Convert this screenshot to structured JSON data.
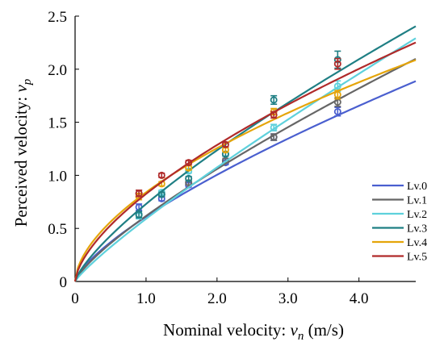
{
  "chart_data": {
    "type": "line",
    "title": "",
    "xlabel": "Nominal velocity: v_n (m/s)",
    "ylabel": "Perceived velocity: v_p",
    "xlabel_parts": {
      "prefix": "Nominal velocity: ",
      "var": "v",
      "sub": "n",
      "suffix": " (m/s)"
    },
    "ylabel_parts": {
      "prefix": "Perceived velocity: ",
      "var": "v",
      "sub": "p"
    },
    "xlim": [
      0,
      4.8
    ],
    "ylim": [
      0,
      2.5
    ],
    "xticks": [
      "0",
      "1.0",
      "2.0",
      "3.0",
      "4.0"
    ],
    "xtick_values": [
      0,
      1.0,
      2.0,
      3.0,
      4.0
    ],
    "yticks": [
      "0",
      "0.5",
      "1.0",
      "1.5",
      "2.0",
      "2.5"
    ],
    "ytick_values": [
      0,
      0.5,
      1.0,
      1.5,
      2.0,
      2.5
    ],
    "grid": false,
    "legend_position": "right",
    "x_measured": [
      0.9,
      1.22,
      1.6,
      2.12,
      2.8,
      3.7
    ],
    "series": [
      {
        "name": "Lv.0",
        "color": "#4a5fcf",
        "fit": {
          "a": 0.61,
          "b": 0.72
        },
        "points": [
          0.7,
          0.78,
          0.91,
          1.12,
          1.36,
          1.6
        ],
        "err": [
          0.03,
          0.02,
          0.02,
          0.02,
          0.03,
          0.04
        ]
      },
      {
        "name": "Lv.1",
        "color": "#666666",
        "fit": {
          "a": 0.617,
          "b": 0.78
        },
        "points": [
          0.83,
          0.82,
          0.93,
          1.14,
          1.36,
          1.69
        ],
        "err": [
          0.03,
          0.02,
          0.02,
          0.02,
          0.03,
          0.04
        ]
      },
      {
        "name": "Lv.2",
        "color": "#5ed1dc",
        "fit": {
          "a": 0.59,
          "b": 0.865
        },
        "points": [
          0.62,
          0.84,
          1.04,
          1.2,
          1.45,
          1.84
        ],
        "err": [
          0.03,
          0.02,
          0.02,
          0.02,
          0.03,
          0.05
        ]
      },
      {
        "name": "Lv.3",
        "color": "#1f7f84",
        "fit": {
          "a": 0.73,
          "b": 0.76
        },
        "points": [
          0.63,
          0.82,
          0.97,
          1.2,
          1.71,
          2.09
        ],
        "err": [
          0.03,
          0.02,
          0.02,
          0.02,
          0.04,
          0.08
        ]
      },
      {
        "name": "Lv.4",
        "color": "#e5a50a",
        "fit": {
          "a": 0.84,
          "b": 0.58
        },
        "points": [
          0.8,
          0.92,
          1.07,
          1.24,
          1.6,
          1.76
        ],
        "err": [
          0.03,
          0.02,
          0.02,
          0.02,
          0.03,
          0.04
        ]
      },
      {
        "name": "Lv.5",
        "color": "#b02a2a",
        "fit": {
          "a": 0.825,
          "b": 0.64
        },
        "points": [
          0.83,
          1.0,
          1.12,
          1.29,
          1.57,
          2.05
        ],
        "err": [
          0.03,
          0.02,
          0.02,
          0.02,
          0.03,
          0.05
        ]
      }
    ]
  }
}
